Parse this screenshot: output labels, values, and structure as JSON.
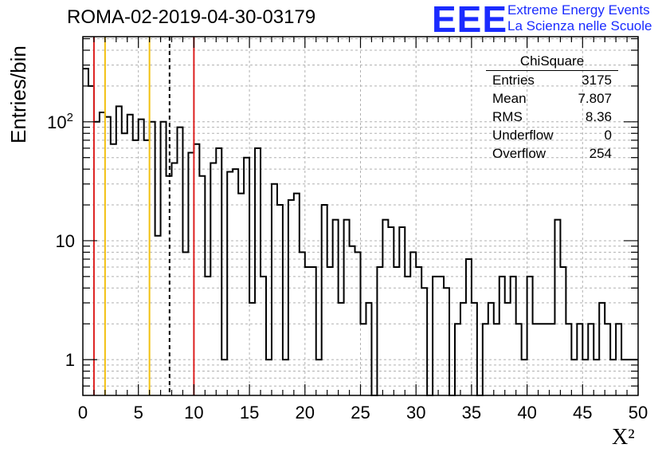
{
  "header": {
    "title": "ROMA-02-2019-04-30-03179",
    "logo_text": "EEE",
    "logo_line1": "Extreme Energy Events",
    "logo_line2": "La Scienza nelle Scuole",
    "logo_color": "#1a2bff"
  },
  "stats_box": {
    "title": "ChiSquare",
    "rows": [
      {
        "label": "Entries",
        "value": "3175"
      },
      {
        "label": "Mean",
        "value": "7.807"
      },
      {
        "label": "RMS",
        "value": "8.36"
      },
      {
        "label": "Underflow",
        "value": "0"
      },
      {
        "label": "Overflow",
        "value": "254"
      }
    ]
  },
  "chart_data": {
    "type": "histogram",
    "title": "ROMA-02-2019-04-30-03179",
    "xlabel": "X²",
    "ylabel": "Entries/bin",
    "xlim": [
      0,
      50
    ],
    "ylim": [
      0.5,
      520
    ],
    "y_scale": "log",
    "grid": true,
    "bin_width": 0.5,
    "x_ticks": [
      0,
      5,
      10,
      15,
      20,
      25,
      30,
      35,
      40,
      45,
      50
    ],
    "y_tick_labels": [
      {
        "value": 1,
        "label": "1"
      },
      {
        "value": 10,
        "label": "10"
      },
      {
        "value": 100,
        "label": "10²"
      }
    ],
    "counts": [
      280,
      200,
      100,
      120,
      110,
      65,
      135,
      80,
      115,
      70,
      105,
      70,
      100,
      11,
      100,
      35,
      45,
      90,
      8,
      55,
      65,
      35,
      5,
      45,
      60,
      1,
      38,
      40,
      25,
      50,
      3,
      60,
      5,
      1,
      30,
      20,
      1,
      22,
      25,
      8,
      6,
      6,
      1,
      20,
      6,
      15,
      3,
      15,
      9,
      8,
      2,
      3,
      0.4,
      6,
      15,
      13,
      6,
      13,
      5,
      8,
      6,
      4,
      0.4,
      5,
      5,
      4,
      0.4,
      2,
      3,
      7,
      3,
      0.4,
      2,
      3,
      2,
      5,
      3,
      5,
      2,
      1,
      5,
      2,
      2,
      2,
      2,
      15,
      6,
      2,
      1,
      2,
      1,
      2,
      1,
      3,
      2,
      1,
      2,
      1,
      1,
      1
    ],
    "vertical_lines": [
      {
        "x": 1,
        "color": "#dd2020",
        "style": "solid"
      },
      {
        "x": 2,
        "color": "#f2c010",
        "style": "solid"
      },
      {
        "x": 6,
        "color": "#f2c010",
        "style": "solid"
      },
      {
        "x": 7.807,
        "color": "#000000",
        "style": "dashed"
      },
      {
        "x": 10,
        "color": "#dd2020",
        "style": "solid"
      }
    ]
  }
}
